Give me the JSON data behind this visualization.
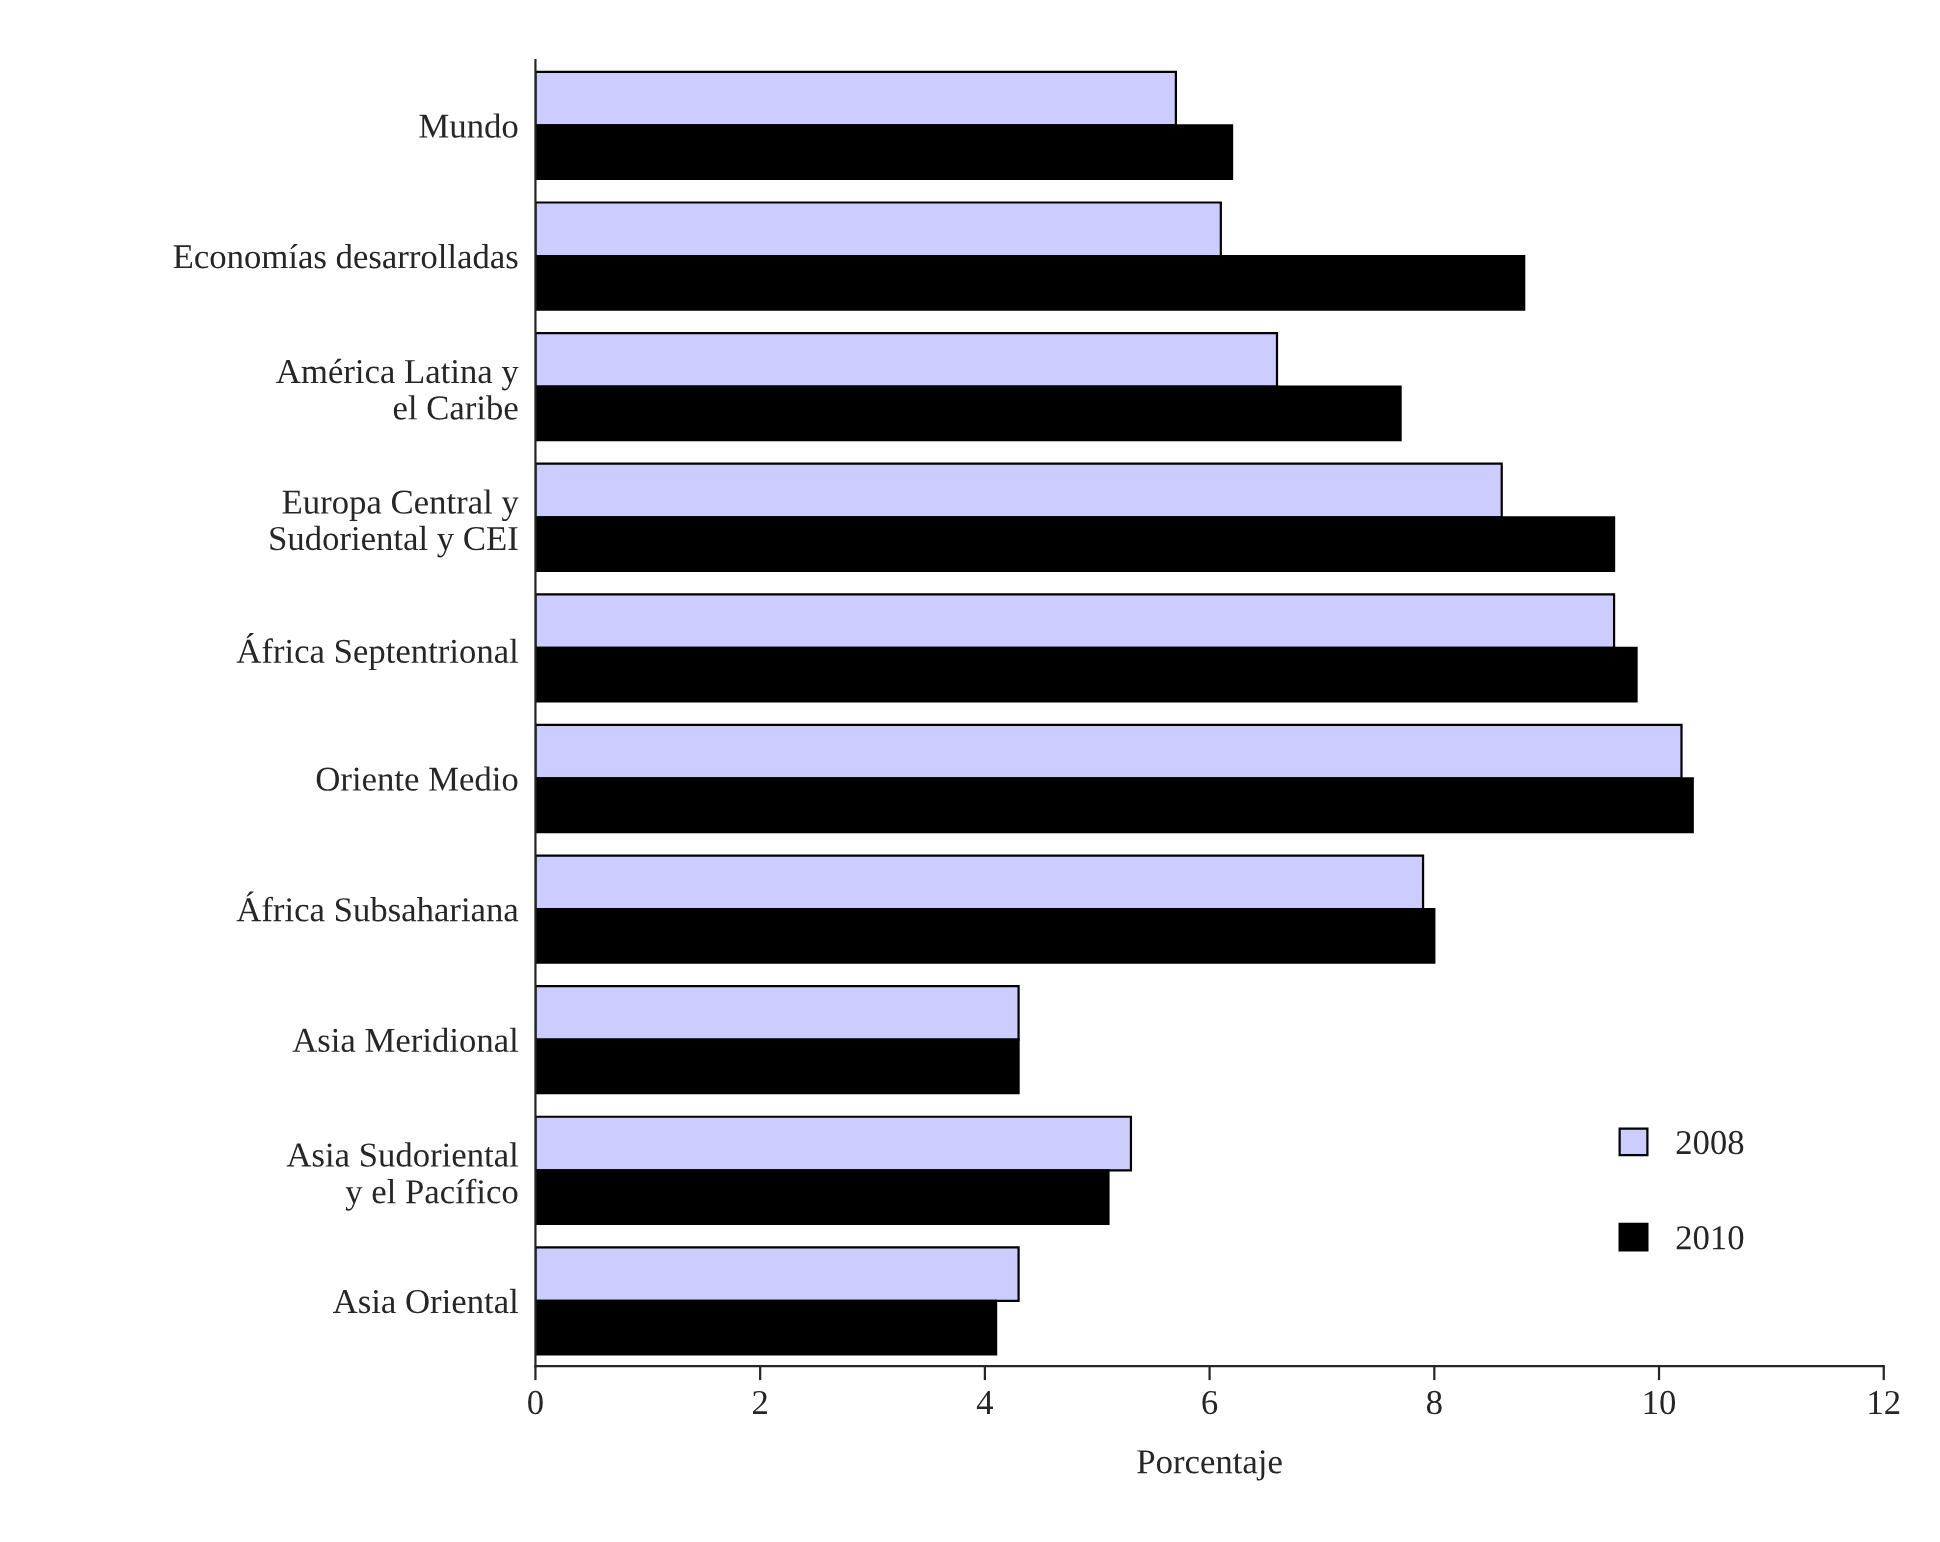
{
  "chart_data": {
    "type": "bar",
    "orientation": "horizontal",
    "xlabel": "Porcentaje",
    "categories": [
      "Mundo",
      "Economías desarrolladas",
      "América Latina y\nel Caribe",
      "Europa Central y\nSudoriental y CEI",
      "África Septentrional",
      "Oriente Medio",
      "África Subsahariana",
      "Asia Meridional",
      "Asia Sudoriental\ny el Pacífico",
      "Asia Oriental"
    ],
    "series": [
      {
        "name": "2008",
        "color": "#ccccff",
        "values": [
          5.7,
          6.1,
          6.6,
          8.6,
          9.6,
          10.2,
          7.9,
          4.3,
          5.3,
          4.3
        ]
      },
      {
        "name": "2010",
        "color": "#000000",
        "values": [
          6.2,
          8.8,
          7.7,
          9.6,
          9.8,
          10.3,
          8.0,
          4.3,
          5.1,
          4.1
        ]
      }
    ],
    "xlim": [
      0,
      12
    ],
    "xticks": [
      0,
      2,
      4,
      6,
      8,
      10,
      12
    ],
    "grid": false,
    "legend": "bottom right"
  }
}
